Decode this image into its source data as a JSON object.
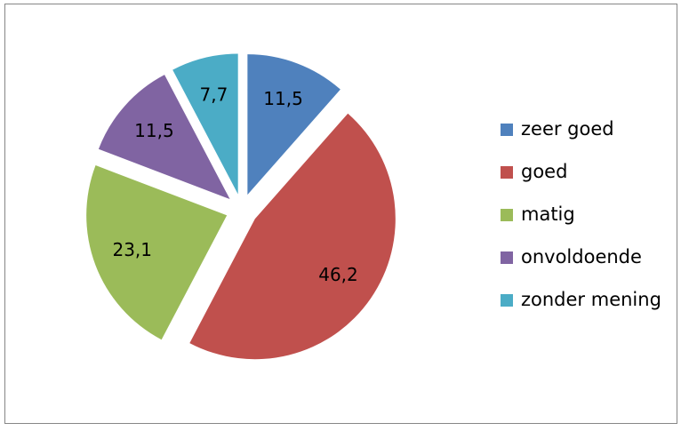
{
  "chart_data": {
    "type": "pie",
    "categories": [
      "zeer goed",
      "goed",
      "matig",
      "onvoldoende",
      "zonder mening"
    ],
    "values": [
      11.5,
      46.2,
      23.1,
      11.5,
      7.7
    ],
    "value_labels": [
      "11,5",
      "46,2",
      "23,1",
      "11,5",
      "7,7"
    ],
    "colors": [
      "#4f81bd",
      "#c0504d",
      "#9bbb59",
      "#8064a2",
      "#4bacc6"
    ],
    "exploded": true,
    "legend": "right"
  }
}
